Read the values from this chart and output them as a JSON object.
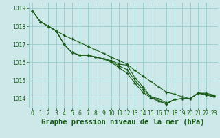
{
  "x": [
    0,
    1,
    2,
    3,
    4,
    5,
    6,
    7,
    8,
    9,
    10,
    11,
    12,
    13,
    14,
    15,
    16,
    17,
    18,
    19,
    20,
    21,
    22,
    23
  ],
  "line1": [
    1018.85,
    1018.25,
    1018.0,
    1017.75,
    1017.0,
    1016.55,
    1016.4,
    1016.4,
    1016.3,
    1016.2,
    1016.1,
    1015.9,
    1015.85,
    1015.15,
    1014.65,
    1014.1,
    1014.0,
    1013.75,
    1013.95,
    1014.0,
    1014.0,
    1014.3,
    1014.3,
    1014.2
  ],
  "line2": [
    1018.85,
    1018.25,
    1018.0,
    1017.75,
    1017.0,
    1016.55,
    1016.4,
    1016.4,
    1016.3,
    1016.2,
    1016.0,
    1015.7,
    1015.4,
    1014.85,
    1014.35,
    1014.05,
    1013.85,
    1013.7,
    1013.95,
    1014.0,
    1014.0,
    1014.3,
    1014.2,
    1014.1
  ],
  "line3": [
    1018.85,
    1018.25,
    1018.0,
    1017.75,
    1017.0,
    1016.55,
    1016.4,
    1016.4,
    1016.3,
    1016.2,
    1016.05,
    1015.8,
    1015.6,
    1015.0,
    1014.5,
    1014.1,
    1013.9,
    1013.7,
    1013.95,
    1014.0,
    1014.0,
    1014.3,
    1014.25,
    1014.15
  ],
  "line4": [
    1018.85,
    1018.25,
    1018.0,
    1017.75,
    1017.5,
    1017.3,
    1017.1,
    1016.9,
    1016.7,
    1016.5,
    1016.3,
    1016.1,
    1015.9,
    1015.55,
    1015.25,
    1014.95,
    1014.65,
    1014.35,
    1014.25,
    1014.1,
    1014.0,
    1014.3,
    1014.25,
    1014.15
  ],
  "bg_color": "#cce8e8",
  "grid_color": "#99cccc",
  "line_color": "#1a5c1a",
  "title": "Graphe pression niveau de la mer (hPa)",
  "ylim": [
    1013.5,
    1019.3
  ],
  "xlim": [
    -0.5,
    23.5
  ],
  "yticks": [
    1014,
    1015,
    1016,
    1017,
    1018,
    1019
  ],
  "xticks": [
    0,
    1,
    2,
    3,
    4,
    5,
    6,
    7,
    8,
    9,
    10,
    11,
    12,
    13,
    14,
    15,
    16,
    17,
    18,
    19,
    20,
    21,
    22,
    23
  ],
  "marker": "+",
  "markersize": 3.5,
  "linewidth": 0.8,
  "title_fontsize": 7.5,
  "tick_fontsize": 5.5
}
